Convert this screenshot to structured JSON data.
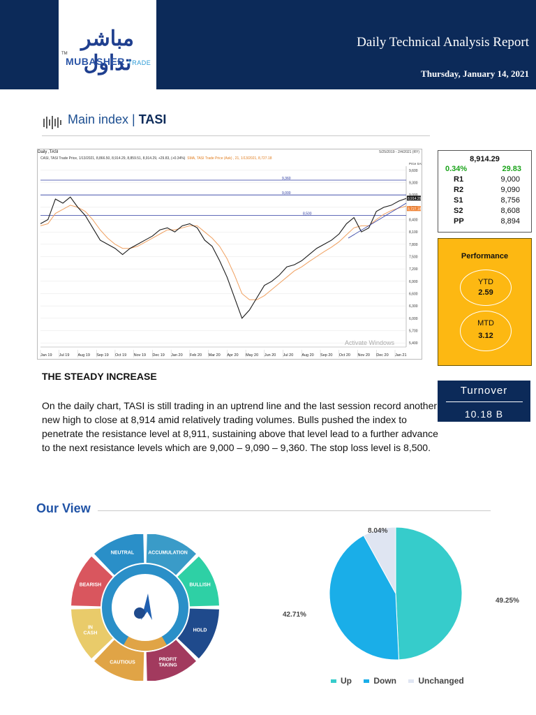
{
  "header": {
    "logo_ar": "مباشر تداول",
    "logo_en_main": "MUBASHER",
    "logo_en_sub": "TRADE",
    "logo_tm": "TM",
    "title": "Daily Technical Analysis Report",
    "date": "Thursday, January 14, 2021"
  },
  "section": {
    "prefix": "Main index | ",
    "name": "TASI"
  },
  "chart_data": {
    "type": "line",
    "title": "Daily ,TASI",
    "range_text": "5/25/2019 - 2/4/2021 (RY)",
    "legend_main": "CASI, TASI Trade Price, 1/13/2021, 8,866.50, 8,914.29, 8,859.51, 8,914.29, +29.83, (+0.34%)",
    "legend_sma": "SMA, TASI Trade Price (Ask) , 21, 1/13/2021, 8,727.18",
    "legend_price_unit": "Price SAR",
    "x_labels": [
      "Jan 19",
      "Jul 19",
      "Aug 19",
      "Sep 19",
      "Oct 19",
      "Nov 19",
      "Dec 19",
      "Jan 20",
      "Feb 20",
      "Mar 20",
      "Apr 20",
      "May 20",
      "Jun 20",
      "Jul 20",
      "Aug 20",
      "Sep 20",
      "Oct 20",
      "Nov 20",
      "Dec 20",
      "Jan 21"
    ],
    "y_ticks": [
      5400,
      5700,
      6000,
      6300,
      6600,
      6900,
      7200,
      7500,
      7800,
      8100,
      8400,
      8700,
      9000,
      9300,
      9600
    ],
    "ylim": [
      5300,
      9700
    ],
    "levels": [
      9360,
      9000,
      8500
    ],
    "level_labels": [
      "9,360",
      "9,000",
      "8,500"
    ],
    "last_price_label": "8,914.29",
    "sma_label": "8,727.18",
    "close": [
      8300,
      8400,
      8900,
      8800,
      8950,
      8700,
      8500,
      8200,
      7900,
      7800,
      7700,
      7550,
      7700,
      7800,
      7900,
      8000,
      8150,
      8200,
      8100,
      8250,
      8300,
      8200,
      7900,
      7750,
      7400,
      7000,
      6500,
      6000,
      6200,
      6500,
      6800,
      6900,
      7050,
      7250,
      7300,
      7400,
      7550,
      7700,
      7800,
      7900,
      8050,
      8300,
      8450,
      8100,
      8200,
      8600,
      8700,
      8750,
      8850,
      8914
    ],
    "sma": [
      8250,
      8300,
      8550,
      8650,
      8750,
      8700,
      8600,
      8400,
      8150,
      7950,
      7800,
      7700,
      7700,
      7750,
      7850,
      7950,
      8050,
      8150,
      8150,
      8200,
      8250,
      8250,
      8100,
      7950,
      7750,
      7450,
      7050,
      6600,
      6450,
      6450,
      6550,
      6700,
      6850,
      7000,
      7150,
      7250,
      7380,
      7500,
      7620,
      7730,
      7860,
      8030,
      8200,
      8250,
      8250,
      8400,
      8530,
      8620,
      8680,
      8727
    ]
  },
  "stats": {
    "close": "8,914.29",
    "pct": "0.34%",
    "chg": "29.83",
    "rows": [
      {
        "k": "R1",
        "v": "9,000"
      },
      {
        "k": "R2",
        "v": "9,090"
      },
      {
        "k": "S1",
        "v": "8,756"
      },
      {
        "k": "S2",
        "v": "8,608"
      },
      {
        "k": "PP",
        "v": "8,894"
      }
    ]
  },
  "performance": {
    "title": "Performance",
    "ytd_label": "YTD",
    "ytd": "2.59",
    "mtd_label": "MTD",
    "mtd": "3.12"
  },
  "turnover": {
    "label": "Turnover",
    "value": "10.18 B"
  },
  "analysis": {
    "heading": "THE STEADY INCREASE",
    "body": "On the daily chart, TASI is still trading in an uptrend line and the last session record another new high to close at 8,914 amid relatively trading volumes. Bulls pushed the index to penetrate the resistance level at 8,911, sustaining above that level lead to a further advance to the next resistance levels which are 9,000 – 9,090 – 9,360. The stop loss level is 8,500."
  },
  "view": {
    "title": "Our View",
    "wheel": [
      "NEUTRAL",
      "ACCUMULATION",
      "BULLISH",
      "HOLD",
      "PROFIT TAKING",
      "CAUTIOUS",
      "IN CASH",
      "BEARISH"
    ],
    "wheel_colors": [
      "#2a8fc8",
      "#3a9bc8",
      "#2ed0a5",
      "#1f4a8c",
      "#a23a5e",
      "#e0a446",
      "#e9cb6a",
      "#d9565e"
    ]
  },
  "pie_chart": {
    "type": "pie",
    "categories": [
      "Up",
      "Down",
      "Unchanged"
    ],
    "values": [
      49.25,
      42.71,
      8.04
    ],
    "labels": [
      "49.25%",
      "42.71%",
      "8.04%"
    ],
    "colors": [
      "#36cccb",
      "#1aaee8",
      "#dfe5f2"
    ]
  },
  "watermark": "Activate Windows"
}
